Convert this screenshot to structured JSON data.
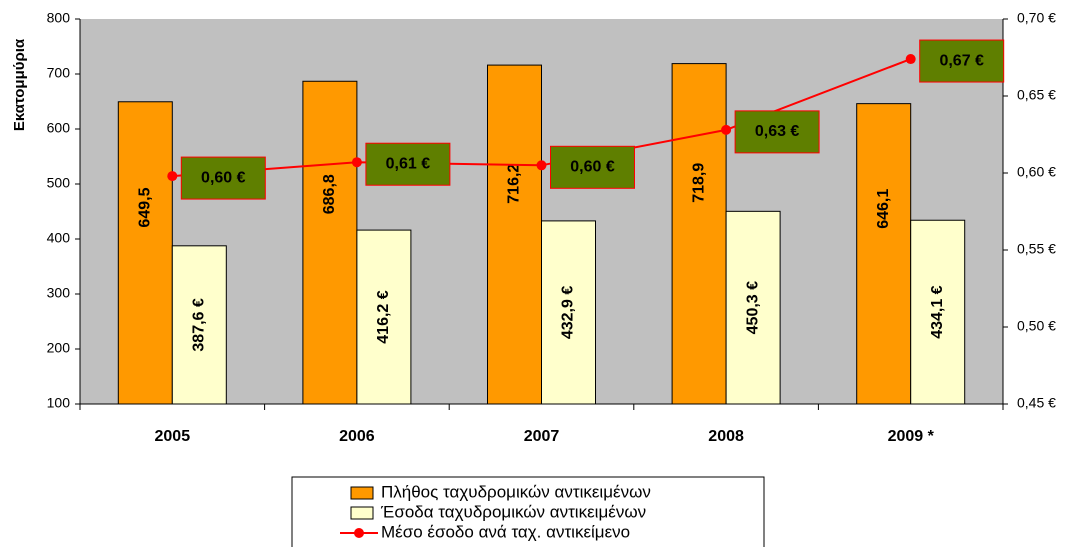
{
  "chart_data": {
    "type": "bar",
    "categories": [
      "2005",
      "2006",
      "2007",
      "2008",
      "2009 *"
    ],
    "ylabel": "Εκατομμύρια",
    "ylim": [
      100,
      800
    ],
    "yticks": [
      100,
      200,
      300,
      400,
      500,
      600,
      700,
      800
    ],
    "y2lim": [
      0.45,
      0.7
    ],
    "y2ticks": [
      {
        "value": 0.45,
        "label": "0,45 €"
      },
      {
        "value": 0.5,
        "label": "0,50 €"
      },
      {
        "value": 0.55,
        "label": "0,55 €"
      },
      {
        "value": 0.6,
        "label": "0,60 €"
      },
      {
        "value": 0.65,
        "label": "0,65 €"
      },
      {
        "value": 0.7,
        "label": "0,70 €"
      }
    ],
    "series": [
      {
        "name": "Πλήθος ταχυδρομικών αντικειμένων",
        "type": "bar",
        "color": "#ff9900",
        "values": [
          649.5,
          686.8,
          716.2,
          718.9,
          646.1
        ],
        "value_labels": [
          "649,5",
          "686,8",
          "716,2",
          "718,9",
          "646,1"
        ]
      },
      {
        "name": "Έσοδα ταχυδρομικών αντικειμένων",
        "type": "bar",
        "color": "#ffffcc",
        "values": [
          387.6,
          416.2,
          432.9,
          450.3,
          434.1
        ],
        "value_labels": [
          "387,6 €",
          "416,2 €",
          "432,9 €",
          "450,3 €",
          "434,1 €"
        ]
      },
      {
        "name": "Μέσο έσοδο ανά ταχ. αντικείμενο",
        "type": "line",
        "color": "#ff0000",
        "axis": "y2",
        "values": [
          0.598,
          0.607,
          0.605,
          0.628,
          0.674
        ],
        "value_labels": [
          "0,60 €",
          "0,61 €",
          "0,60 €",
          "0,63 €",
          "0,67 €"
        ]
      }
    ],
    "legend": "bottom"
  }
}
